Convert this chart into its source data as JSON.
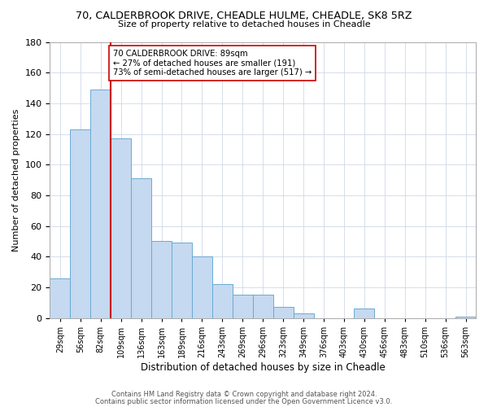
{
  "title_line1": "70, CALDERBROOK DRIVE, CHEADLE HULME, CHEADLE, SK8 5RZ",
  "title_line2": "Size of property relative to detached houses in Cheadle",
  "xlabel": "Distribution of detached houses by size in Cheadle",
  "ylabel": "Number of detached properties",
  "bar_labels": [
    "29sqm",
    "56sqm",
    "82sqm",
    "109sqm",
    "136sqm",
    "163sqm",
    "189sqm",
    "216sqm",
    "243sqm",
    "269sqm",
    "296sqm",
    "323sqm",
    "349sqm",
    "376sqm",
    "403sqm",
    "430sqm",
    "456sqm",
    "483sqm",
    "510sqm",
    "536sqm",
    "563sqm"
  ],
  "bar_heights": [
    26,
    123,
    149,
    117,
    91,
    50,
    49,
    40,
    22,
    15,
    15,
    7,
    3,
    0,
    0,
    6,
    0,
    0,
    0,
    0,
    1
  ],
  "bar_color": "#c5d9f0",
  "bar_edge_color": "#6aaad4",
  "property_line_x": 2.5,
  "property_line_color": "#cc0000",
  "annotation_text": "70 CALDERBROOK DRIVE: 89sqm\n← 27% of detached houses are smaller (191)\n73% of semi-detached houses are larger (517) →",
  "annotation_box_color": "#ffffff",
  "annotation_box_edge": "#cc0000",
  "ylim": [
    0,
    180
  ],
  "footer_line1": "Contains HM Land Registry data © Crown copyright and database right 2024.",
  "footer_line2": "Contains public sector information licensed under the Open Government Licence v3.0.",
  "background_color": "#ffffff",
  "grid_color": "#d0d8e8"
}
